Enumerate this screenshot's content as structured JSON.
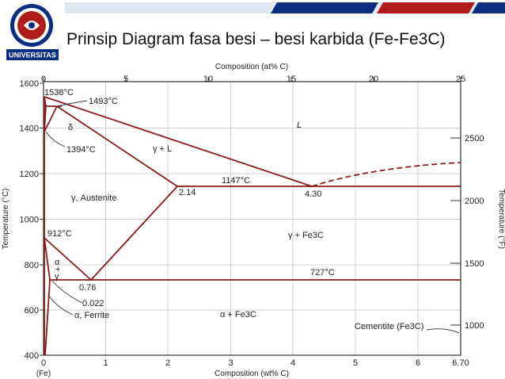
{
  "slide": {
    "title": "Prinsip Diagram fasa besi – besi karbida (Fe-Fe3C)",
    "logo_text": "UNIVERSITAS",
    "accent_colors": [
      "#0b2e80",
      "#b01c1c",
      "#dfe8f0"
    ]
  },
  "diagram": {
    "top_axis_label": "Composition (at% C)",
    "top_ticks": [
      "0",
      "5",
      "10",
      "15",
      "20",
      "25"
    ],
    "bottom_axis_label": "Composition (wt% C)",
    "bottom_ticks": [
      "0",
      "1",
      "2",
      "3",
      "4",
      "5",
      "6",
      "6.70"
    ],
    "bottom_sublabel": "(Fe)",
    "left_axis_label": "Temperature (°C)",
    "left_ticks": [
      "400",
      "600",
      "800",
      "1000",
      "1200",
      "1400",
      "1600"
    ],
    "right_axis_label": "Temperature (°F)",
    "right_ticks": [
      "1000",
      "1500",
      "2000",
      "2500"
    ],
    "line_color": "#8b1a1a",
    "temperatures": {
      "t1538": "1538°C",
      "t1493": "1493°C",
      "t1394": "1394°C",
      "t1147": "1147°C",
      "t912": "912°C",
      "t727": "727°C"
    },
    "compositions": {
      "c214": "2.14",
      "c430": "4.30",
      "c076": "0.76",
      "c0022": "0.022"
    },
    "regions": {
      "liquid": "L",
      "gamma_liquid": "γ + L",
      "delta": "δ",
      "austenite": "γ, Austenite",
      "gamma_fe3c": "γ + Fe3C",
      "alpha_gamma_1": "α",
      "alpha_gamma_2": "+",
      "alpha_gamma_3": "γ",
      "ferrite": "α, Ferrite",
      "alpha_fe3c": "α + Fe3C",
      "cementite": "Cementite (Fe3C)"
    }
  }
}
